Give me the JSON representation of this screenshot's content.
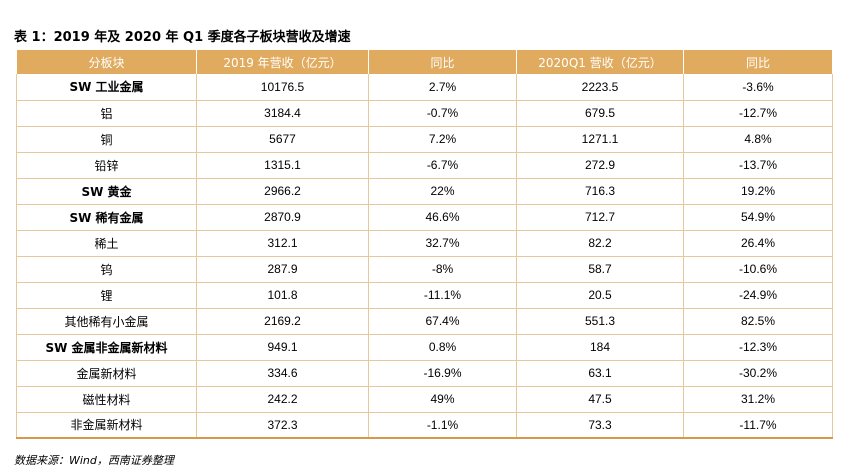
{
  "title": "表 1：2019 年及 2020 年 Q1 季度各子板块营收及增速",
  "table": {
    "headers": [
      "分板块",
      "2019 年营收（亿元）",
      "同比",
      "2020Q1 营收（亿元）",
      "同比"
    ],
    "rows": [
      {
        "bold": true,
        "cells": [
          "SW 工业金属",
          "10176.5",
          "2.7%",
          "2223.5",
          "-3.6%"
        ]
      },
      {
        "bold": false,
        "cells": [
          "铝",
          "3184.4",
          "-0.7%",
          "679.5",
          "-12.7%"
        ]
      },
      {
        "bold": false,
        "cells": [
          "铜",
          "5677",
          "7.2%",
          "1271.1",
          "4.8%"
        ]
      },
      {
        "bold": false,
        "cells": [
          "铅锌",
          "1315.1",
          "-6.7%",
          "272.9",
          "-13.7%"
        ]
      },
      {
        "bold": true,
        "cells": [
          "SW 黄金",
          "2966.2",
          "22%",
          "716.3",
          "19.2%"
        ]
      },
      {
        "bold": true,
        "cells": [
          "SW 稀有金属",
          "2870.9",
          "46.6%",
          "712.7",
          "54.9%"
        ]
      },
      {
        "bold": false,
        "cells": [
          "稀土",
          "312.1",
          "32.7%",
          "82.2",
          "26.4%"
        ]
      },
      {
        "bold": false,
        "cells": [
          "钨",
          "287.9",
          "-8%",
          "58.7",
          "-10.6%"
        ]
      },
      {
        "bold": false,
        "cells": [
          "锂",
          "101.8",
          "-11.1%",
          "20.5",
          "-24.9%"
        ]
      },
      {
        "bold": false,
        "cells": [
          "其他稀有小金属",
          "2169.2",
          "67.4%",
          "551.3",
          "82.5%"
        ]
      },
      {
        "bold": true,
        "cells": [
          "SW 金属非金属新材料",
          "949.1",
          "0.8%",
          "184",
          "-12.3%"
        ]
      },
      {
        "bold": false,
        "cells": [
          "金属新材料",
          "334.6",
          "-16.9%",
          "63.1",
          "-30.2%"
        ]
      },
      {
        "bold": false,
        "cells": [
          "磁性材料",
          "242.2",
          "49%",
          "47.5",
          "31.2%"
        ]
      },
      {
        "bold": false,
        "cells": [
          "非金属新材料",
          "372.3",
          "-1.1%",
          "73.3",
          "-11.7%"
        ]
      }
    ]
  },
  "source": "数据来源：Wind，西南证券整理",
  "colors": {
    "header_bg": "#e0ab5f",
    "border": "#e7c79c"
  }
}
